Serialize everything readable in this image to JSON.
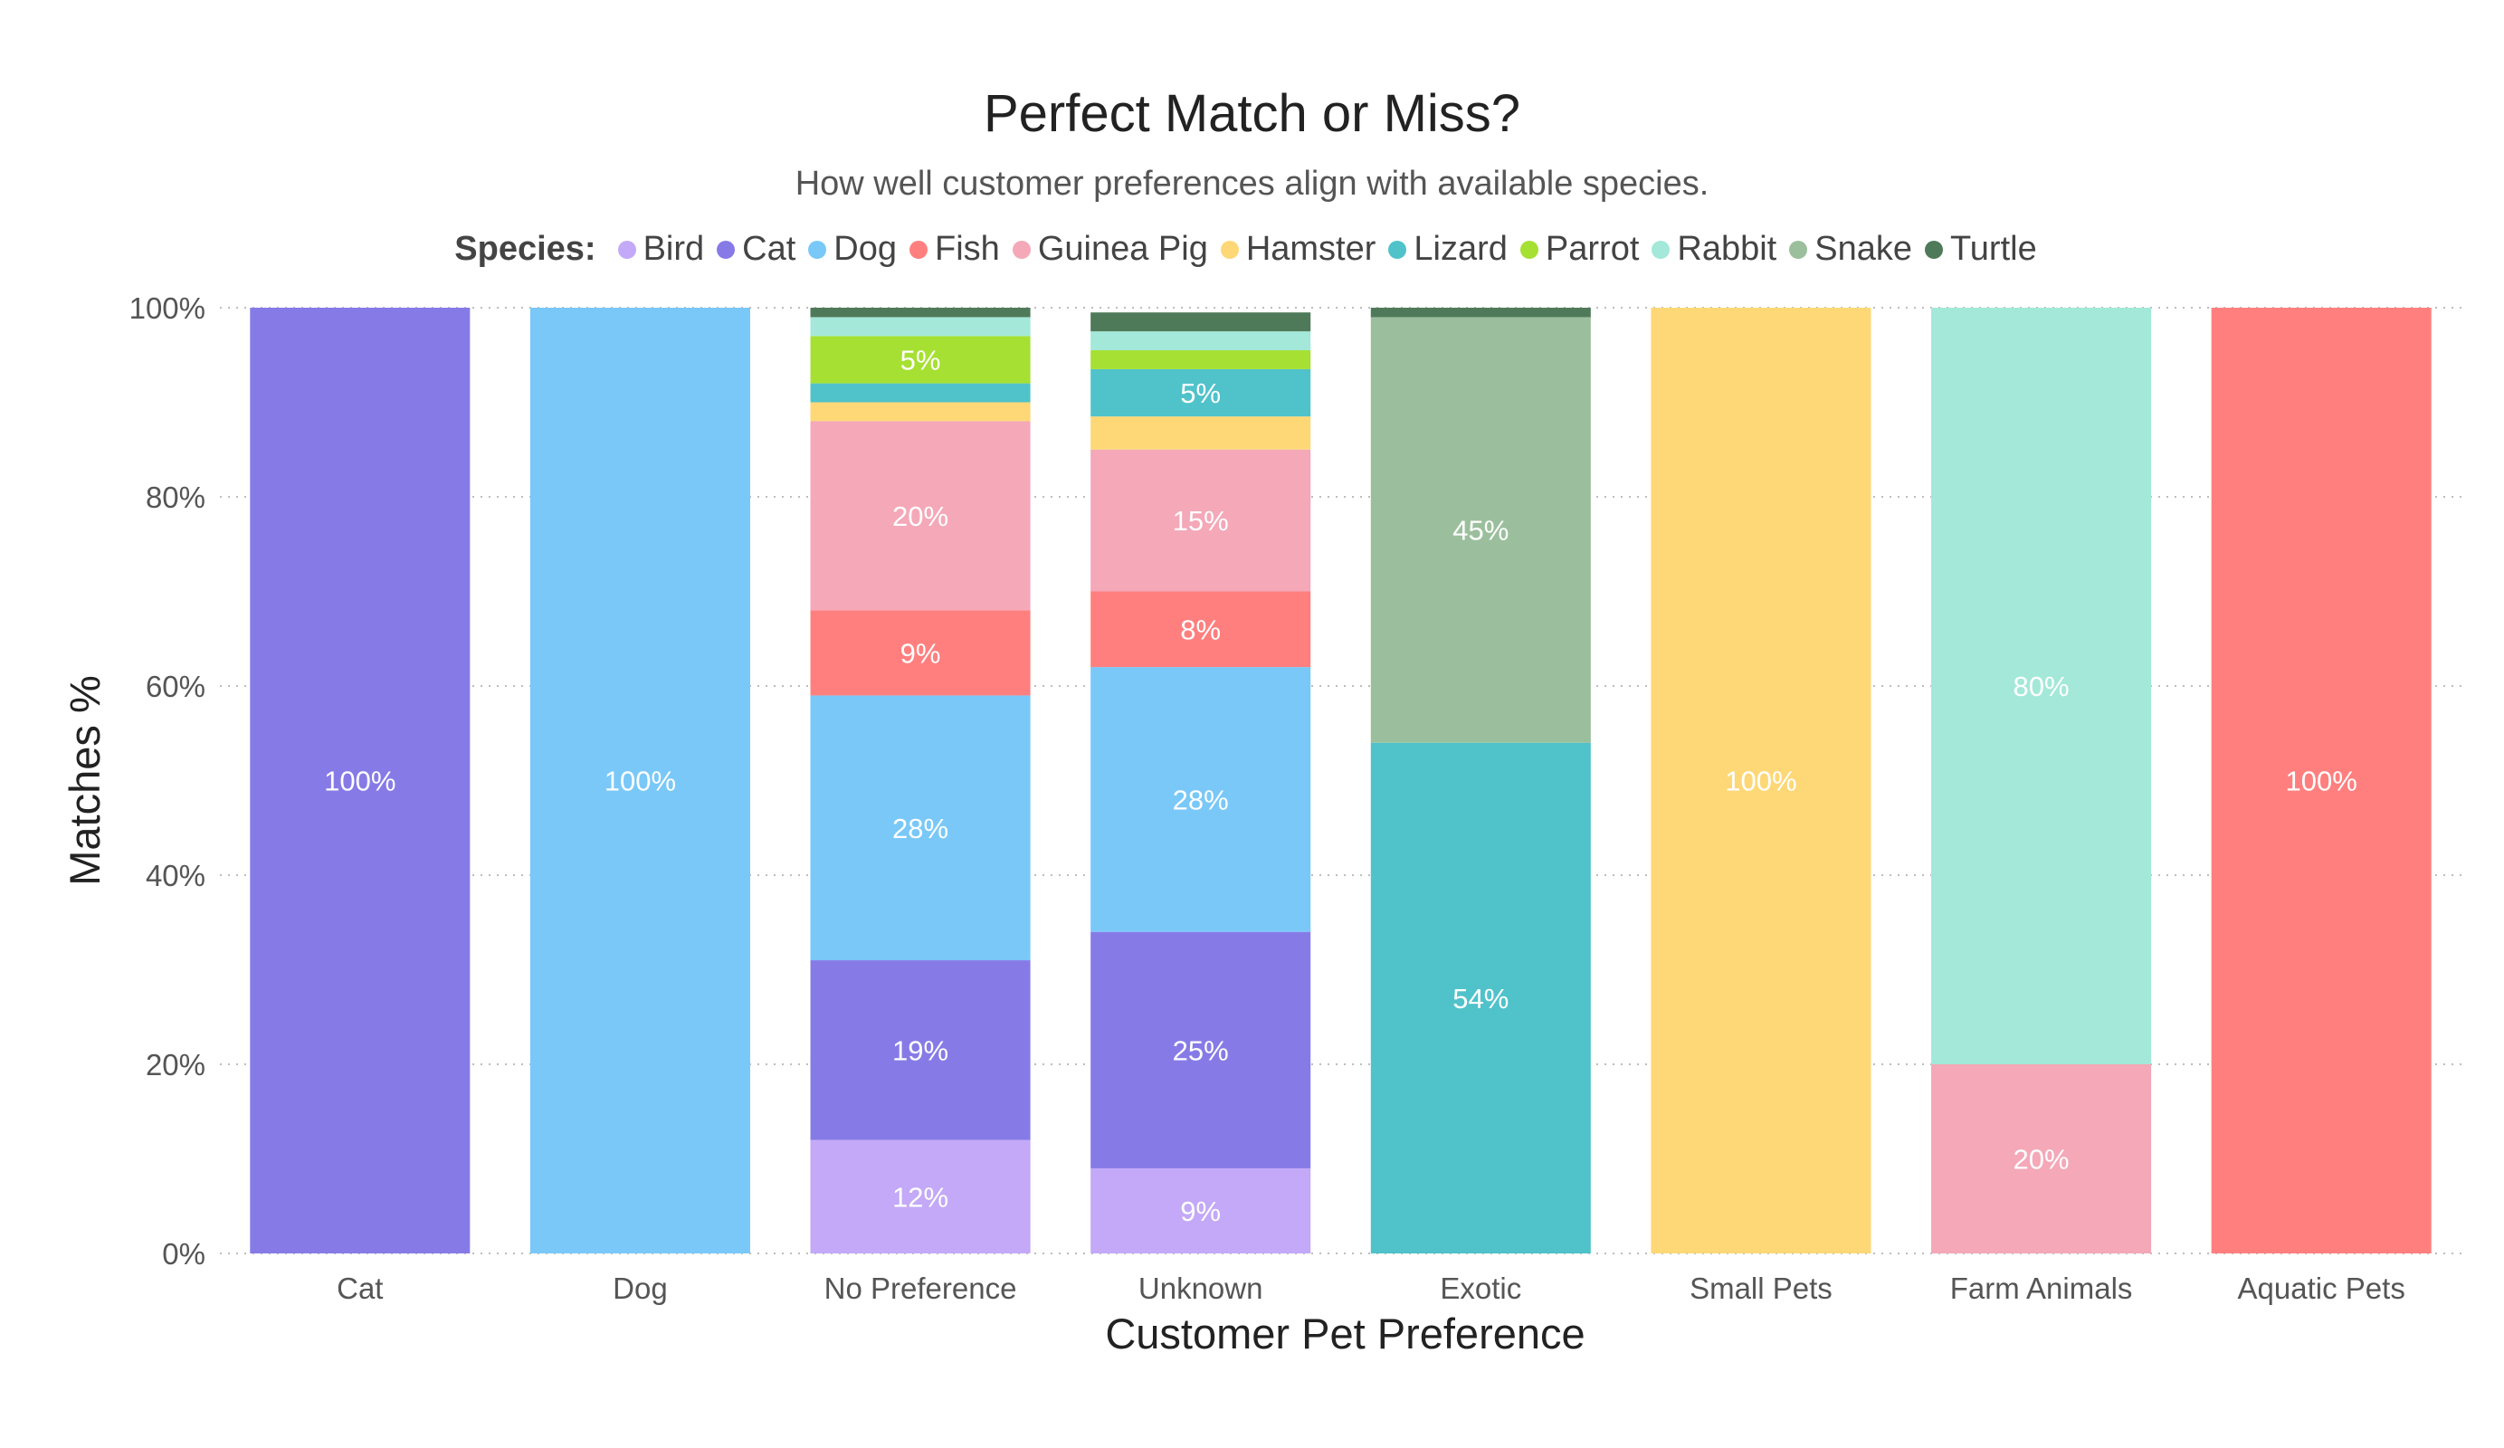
{
  "chart_data": {
    "type": "bar",
    "stacked": true,
    "title": "Perfect Match or Miss?",
    "subtitle": "How well customer preferences align with available species.",
    "xlabel": "Customer Pet Preference",
    "ylabel": "Matches %",
    "ylim": [
      0,
      100
    ],
    "yticks": [
      "0%",
      "20%",
      "40%",
      "60%",
      "80%",
      "100%"
    ],
    "grid": "horizontal-dotted",
    "legend_title": "Species:",
    "legend_position": "top",
    "categories": [
      "Cat",
      "Dog",
      "No Preference",
      "Unknown",
      "Exotic",
      "Small Pets",
      "Farm Animals",
      "Aquatic Pets"
    ],
    "series": [
      {
        "name": "Bird",
        "color": "#c3a9f7",
        "values": [
          0,
          0,
          12,
          9,
          0,
          0,
          0,
          0
        ],
        "labels": [
          "",
          "",
          "12%",
          "9%",
          "",
          "",
          "",
          ""
        ]
      },
      {
        "name": "Cat",
        "color": "#867be6",
        "values": [
          100,
          0,
          19,
          25,
          0,
          0,
          0,
          0
        ],
        "labels": [
          "100%",
          "",
          "19%",
          "25%",
          "",
          "",
          "",
          ""
        ]
      },
      {
        "name": "Dog",
        "color": "#79c8f8",
        "values": [
          0,
          100,
          28,
          28,
          0,
          0,
          0,
          0
        ],
        "labels": [
          "",
          "100%",
          "28%",
          "28%",
          "",
          "",
          "",
          ""
        ]
      },
      {
        "name": "Fish",
        "color": "#ff7f7f",
        "values": [
          0,
          0,
          9,
          8,
          0,
          0,
          0,
          100
        ],
        "labels": [
          "",
          "",
          "9%",
          "8%",
          "",
          "",
          "",
          "100%"
        ]
      },
      {
        "name": "Guinea Pig",
        "color": "#f4a8b8",
        "values": [
          0,
          0,
          20,
          15,
          0,
          0,
          20,
          0
        ],
        "labels": [
          "",
          "",
          "20%",
          "15%",
          "",
          "",
          "20%",
          ""
        ]
      },
      {
        "name": "Hamster",
        "color": "#fed877",
        "values": [
          0,
          0,
          2,
          3.5,
          0,
          100,
          0,
          0
        ],
        "labels": [
          "",
          "",
          "",
          "",
          "",
          "100%",
          "",
          ""
        ]
      },
      {
        "name": "Lizard",
        "color": "#50c2ca",
        "values": [
          0,
          0,
          2,
          5,
          54,
          0,
          0,
          0
        ],
        "labels": [
          "",
          "",
          "",
          "5%",
          "54%",
          "",
          "",
          ""
        ]
      },
      {
        "name": "Parrot",
        "color": "#a6e033",
        "values": [
          0,
          0,
          5,
          2,
          0,
          0,
          0,
          0
        ],
        "labels": [
          "",
          "",
          "5%",
          "",
          "",
          "",
          "",
          ""
        ]
      },
      {
        "name": "Rabbit",
        "color": "#a3e8d9",
        "values": [
          0,
          0,
          2,
          2,
          0,
          0,
          80,
          0
        ],
        "labels": [
          "",
          "",
          "",
          "",
          "",
          "",
          "80%",
          ""
        ]
      },
      {
        "name": "Snake",
        "color": "#9bbf9c",
        "values": [
          0,
          0,
          0,
          0,
          45,
          0,
          0,
          0
        ],
        "labels": [
          "",
          "",
          "",
          "",
          "45%",
          "",
          "",
          ""
        ]
      },
      {
        "name": "Turtle",
        "color": "#4f7a59",
        "values": [
          0,
          0,
          1,
          2,
          1,
          0,
          0,
          0
        ],
        "labels": [
          "",
          "",
          "",
          "",
          "",
          "",
          "",
          ""
        ]
      }
    ]
  }
}
